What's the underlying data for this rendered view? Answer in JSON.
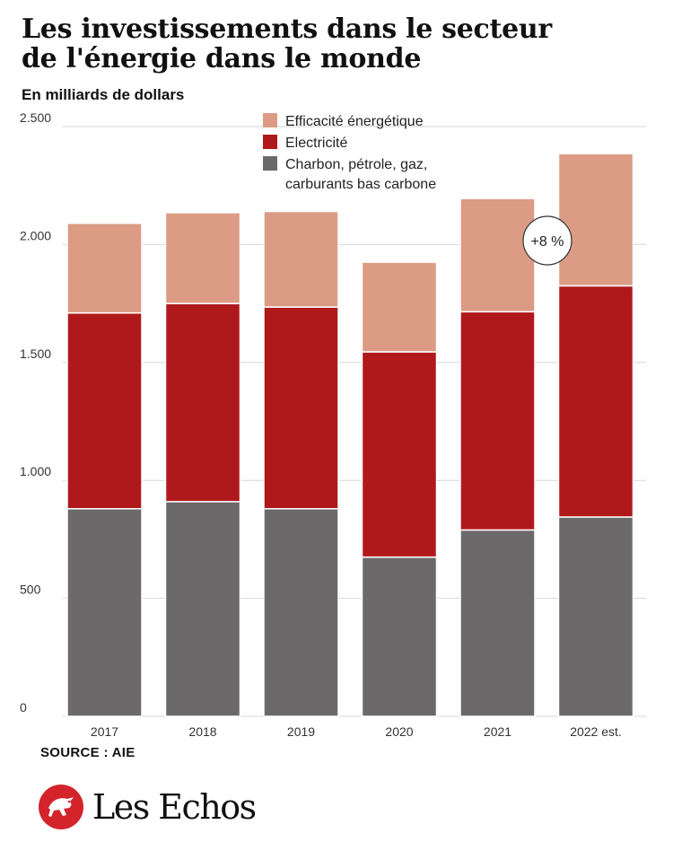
{
  "title_line1": "Les investissements dans le secteur",
  "title_line2": "de l'énergie dans le monde",
  "subtitle": "En milliards de dollars",
  "source": "SOURCE : AIE",
  "logo_text": "Les Echos",
  "annotation": "+8 %",
  "colors": {
    "efficacite": "#dc9b85",
    "electricite": "#b0191b",
    "fossile": "#6b6969",
    "grid": "#d6d6d6",
    "brand": "#d3232b"
  },
  "chart_data": {
    "type": "bar",
    "stacked": true,
    "categories": [
      "2017",
      "2018",
      "2019",
      "2020",
      "2021",
      "2022 est."
    ],
    "series": [
      {
        "name": "Charbon, pétrole, gaz, carburants bas carbone",
        "values": [
          880,
          910,
          880,
          675,
          790,
          845
        ]
      },
      {
        "name": "Electricité",
        "values": [
          830,
          840,
          855,
          870,
          925,
          980
        ]
      },
      {
        "name": "Efficacité énergétique",
        "values": [
          380,
          385,
          405,
          380,
          480,
          560
        ]
      }
    ],
    "ylim": [
      0,
      2500
    ],
    "yticks": [
      0,
      500,
      1000,
      1500,
      2000,
      2500
    ],
    "ytick_labels": [
      "0",
      "500",
      "1.000",
      "1.500",
      "2.000",
      "2.500"
    ],
    "grid": true,
    "legend_lines": [
      [
        "Efficacité énergétique"
      ],
      [
        "Electricité"
      ],
      [
        "Charbon, pétrole, gaz,",
        "carburants bas carbone"
      ]
    ]
  }
}
